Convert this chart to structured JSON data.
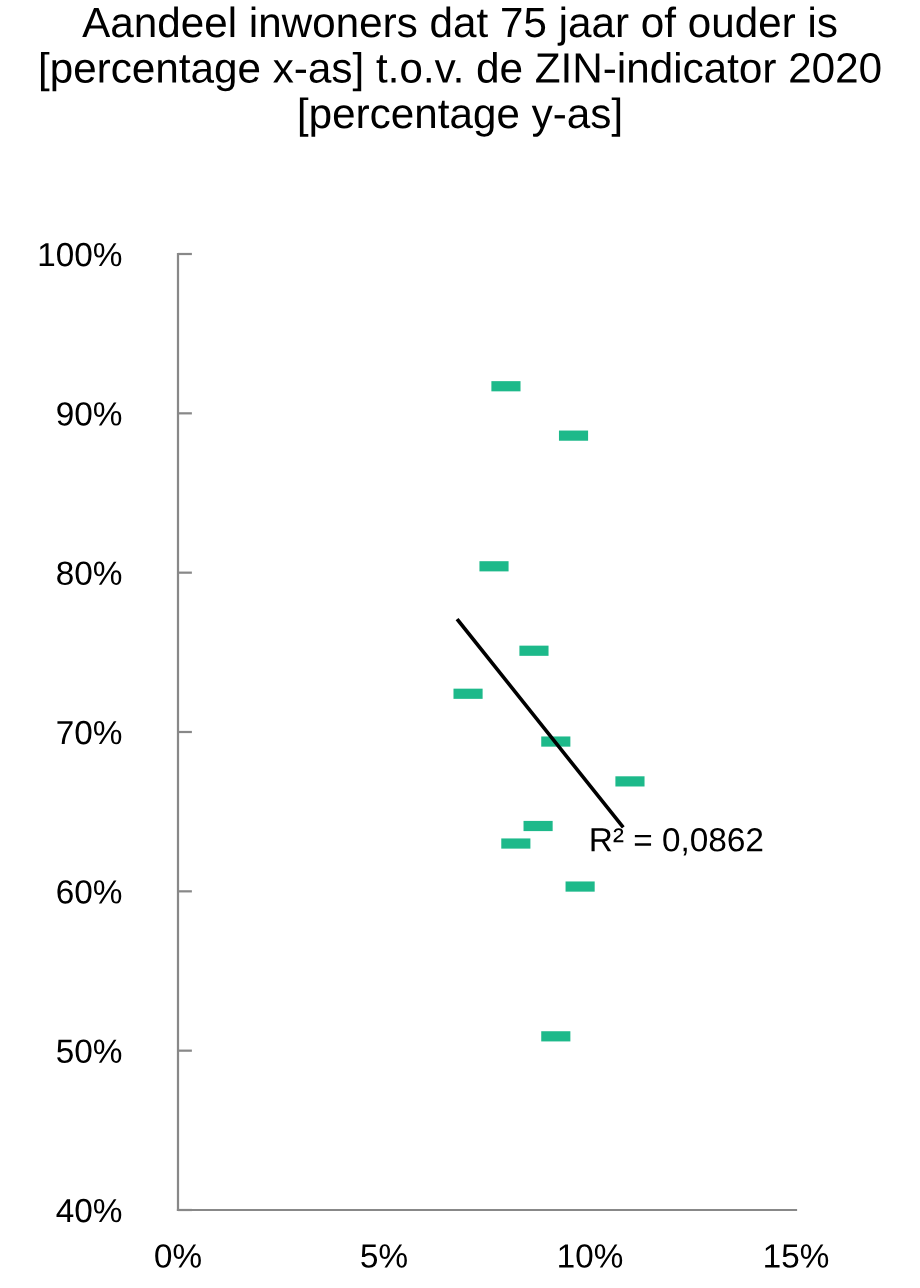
{
  "chart_data": {
    "type": "scatter",
    "title": "Aandeel inwoners dat 75 jaar of ouder is [percentage x-as] t.o.v. de ZIN-indicator 2020 [percentage y-as]",
    "series": [
      {
        "color": "#1db98a",
        "x": [
          7.96,
          9.6,
          7.67,
          8.64,
          7.04,
          9.17,
          10.97,
          8.74,
          8.2,
          9.76,
          9.17
        ],
        "values": [
          91.7,
          88.6,
          80.4,
          75.1,
          72.4,
          69.4,
          66.9,
          64.1,
          63.0,
          60.3,
          50.9
        ],
        "marker": "square"
      },
      {
        "type": "line",
        "color": "#000000",
        "x": [
          6.8,
          10.78
        ],
        "values": [
          77.0,
          64.1
        ],
        "marker": "none"
      }
    ],
    "annotations": [
      {
        "text": "R² = 0,0862",
        "x": 10.78,
        "y": 64.1
      }
    ],
    "xlim": [
      0,
      15
    ],
    "xticks": [
      {
        "value": 0,
        "label": "0%"
      },
      {
        "value": 5,
        "label": "5%"
      },
      {
        "value": 10,
        "label": "10%"
      },
      {
        "value": 15,
        "label": "15%"
      }
    ],
    "ylim": [
      40,
      100
    ],
    "yticks": [
      {
        "value": 40,
        "label": "40%"
      },
      {
        "value": 50,
        "label": "50%"
      },
      {
        "value": 60,
        "label": "60%"
      },
      {
        "value": 70,
        "label": "70%"
      },
      {
        "value": 80,
        "label": "80%"
      },
      {
        "value": 90,
        "label": "90%"
      },
      {
        "value": 100,
        "label": "100%"
      }
    ],
    "grid": false,
    "legend": false
  }
}
